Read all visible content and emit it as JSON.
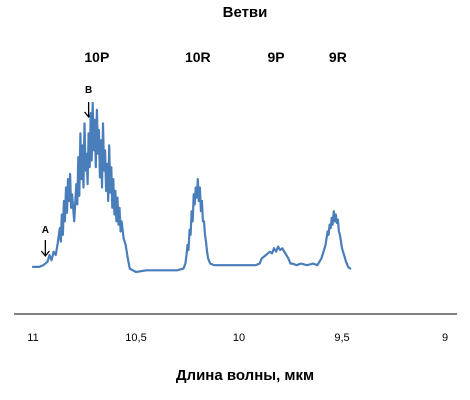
{
  "chart_data": {
    "type": "line",
    "title": "Ветви",
    "xlabel": "Длина волны, мкм",
    "ylabel": "",
    "xlim": [
      11,
      9
    ],
    "x_axis_reversed": true,
    "grid": false,
    "legend": "none",
    "colors": {
      "series": "#4a7ebb",
      "axis": "#000000"
    },
    "x_ticks": [
      {
        "value": 11,
        "label": "11"
      },
      {
        "value": 10.5,
        "label": "10,5"
      },
      {
        "value": 10,
        "label": "10"
      },
      {
        "value": 9.5,
        "label": "9,5"
      },
      {
        "value": 9,
        "label": "9"
      }
    ],
    "branch_labels": [
      {
        "label": "10P",
        "x": 10.69
      },
      {
        "label": "10R",
        "x": 10.2
      },
      {
        "label": "9P",
        "x": 9.82
      },
      {
        "label": "9R",
        "x": 9.52
      }
    ],
    "annotations": [
      {
        "label": "A",
        "x": 10.94,
        "arrow": "down"
      },
      {
        "label": "B",
        "x": 10.73,
        "arrow": "down"
      }
    ],
    "series": [
      {
        "values": [
          [
            11.0,
            0.03
          ],
          [
            10.97,
            0.03
          ],
          [
            10.95,
            0.04
          ],
          [
            10.93,
            0.06
          ],
          [
            10.92,
            0.1
          ],
          [
            10.91,
            0.07
          ],
          [
            10.9,
            0.12
          ],
          [
            10.89,
            0.1
          ],
          [
            10.88,
            0.17
          ],
          [
            10.87,
            0.26
          ],
          [
            10.865,
            0.18
          ],
          [
            10.86,
            0.34
          ],
          [
            10.855,
            0.22
          ],
          [
            10.85,
            0.42
          ],
          [
            10.845,
            0.3
          ],
          [
            10.84,
            0.5
          ],
          [
            10.835,
            0.35
          ],
          [
            10.83,
            0.55
          ],
          [
            10.825,
            0.42
          ],
          [
            10.82,
            0.58
          ],
          [
            10.815,
            0.38
          ],
          [
            10.81,
            0.46
          ],
          [
            10.8,
            0.3
          ],
          [
            10.79,
            0.52
          ],
          [
            10.785,
            0.4
          ],
          [
            10.78,
            0.68
          ],
          [
            10.775,
            0.45
          ],
          [
            10.77,
            0.82
          ],
          [
            10.765,
            0.55
          ],
          [
            10.76,
            0.75
          ],
          [
            10.755,
            0.5
          ],
          [
            10.75,
            0.88
          ],
          [
            10.745,
            0.6
          ],
          [
            10.74,
            0.7
          ],
          [
            10.735,
            0.52
          ],
          [
            10.73,
            0.82
          ],
          [
            10.725,
            0.62
          ],
          [
            10.72,
            0.94
          ],
          [
            10.715,
            0.66
          ],
          [
            10.71,
            1.0
          ],
          [
            10.705,
            0.72
          ],
          [
            10.7,
            0.9
          ],
          [
            10.695,
            0.62
          ],
          [
            10.69,
            0.96
          ],
          [
            10.685,
            0.7
          ],
          [
            10.68,
            0.84
          ],
          [
            10.675,
            0.56
          ],
          [
            10.67,
            0.78
          ],
          [
            10.665,
            0.5
          ],
          [
            10.66,
            0.88
          ],
          [
            10.655,
            0.6
          ],
          [
            10.65,
            0.72
          ],
          [
            10.645,
            0.48
          ],
          [
            10.64,
            0.64
          ],
          [
            10.635,
            0.42
          ],
          [
            10.63,
            0.75
          ],
          [
            10.625,
            0.47
          ],
          [
            10.62,
            0.62
          ],
          [
            10.615,
            0.38
          ],
          [
            10.61,
            0.55
          ],
          [
            10.605,
            0.34
          ],
          [
            10.6,
            0.48
          ],
          [
            10.595,
            0.3
          ],
          [
            10.59,
            0.44
          ],
          [
            10.585,
            0.28
          ],
          [
            10.58,
            0.38
          ],
          [
            10.575,
            0.24
          ],
          [
            10.57,
            0.3
          ],
          [
            10.56,
            0.2
          ],
          [
            10.55,
            0.16
          ],
          [
            10.54,
            0.08
          ],
          [
            10.53,
            0.02
          ],
          [
            10.5,
            0.0
          ],
          [
            10.45,
            0.01
          ],
          [
            10.4,
            0.01
          ],
          [
            10.35,
            0.01
          ],
          [
            10.3,
            0.01
          ],
          [
            10.27,
            0.02
          ],
          [
            10.26,
            0.05
          ],
          [
            10.255,
            0.1
          ],
          [
            10.25,
            0.16
          ],
          [
            10.245,
            0.13
          ],
          [
            10.24,
            0.25
          ],
          [
            10.235,
            0.22
          ],
          [
            10.23,
            0.36
          ],
          [
            10.225,
            0.3
          ],
          [
            10.22,
            0.46
          ],
          [
            10.215,
            0.4
          ],
          [
            10.21,
            0.5
          ],
          [
            10.205,
            0.44
          ],
          [
            10.2,
            0.55
          ],
          [
            10.195,
            0.42
          ],
          [
            10.19,
            0.5
          ],
          [
            10.185,
            0.36
          ],
          [
            10.18,
            0.42
          ],
          [
            10.175,
            0.3
          ],
          [
            10.17,
            0.3
          ],
          [
            10.165,
            0.22
          ],
          [
            10.16,
            0.18
          ],
          [
            10.155,
            0.12
          ],
          [
            10.15,
            0.08
          ],
          [
            10.14,
            0.05
          ],
          [
            10.12,
            0.04
          ],
          [
            10.0,
            0.04
          ],
          [
            9.92,
            0.04
          ],
          [
            9.9,
            0.05
          ],
          [
            9.89,
            0.08
          ],
          [
            9.87,
            0.1
          ],
          [
            9.85,
            0.12
          ],
          [
            9.84,
            0.11
          ],
          [
            9.83,
            0.14
          ],
          [
            9.82,
            0.12
          ],
          [
            9.81,
            0.15
          ],
          [
            9.8,
            0.13
          ],
          [
            9.79,
            0.14
          ],
          [
            9.78,
            0.12
          ],
          [
            9.77,
            0.1
          ],
          [
            9.76,
            0.08
          ],
          [
            9.75,
            0.05
          ],
          [
            9.74,
            0.05
          ],
          [
            9.72,
            0.04
          ],
          [
            9.7,
            0.05
          ],
          [
            9.67,
            0.04
          ],
          [
            9.64,
            0.05
          ],
          [
            9.62,
            0.04
          ],
          [
            9.61,
            0.06
          ],
          [
            9.6,
            0.08
          ],
          [
            9.59,
            0.12
          ],
          [
            9.58,
            0.16
          ],
          [
            9.575,
            0.2
          ],
          [
            9.57,
            0.24
          ],
          [
            9.565,
            0.22
          ],
          [
            9.56,
            0.28
          ],
          [
            9.555,
            0.26
          ],
          [
            9.55,
            0.32
          ],
          [
            9.545,
            0.28
          ],
          [
            9.54,
            0.36
          ],
          [
            9.535,
            0.3
          ],
          [
            9.53,
            0.34
          ],
          [
            9.525,
            0.29
          ],
          [
            9.52,
            0.31
          ],
          [
            9.515,
            0.24
          ],
          [
            9.51,
            0.22
          ],
          [
            9.505,
            0.18
          ],
          [
            9.5,
            0.14
          ],
          [
            9.49,
            0.1
          ],
          [
            9.48,
            0.06
          ],
          [
            9.47,
            0.03
          ],
          [
            9.46,
            0.02
          ]
        ]
      }
    ]
  }
}
